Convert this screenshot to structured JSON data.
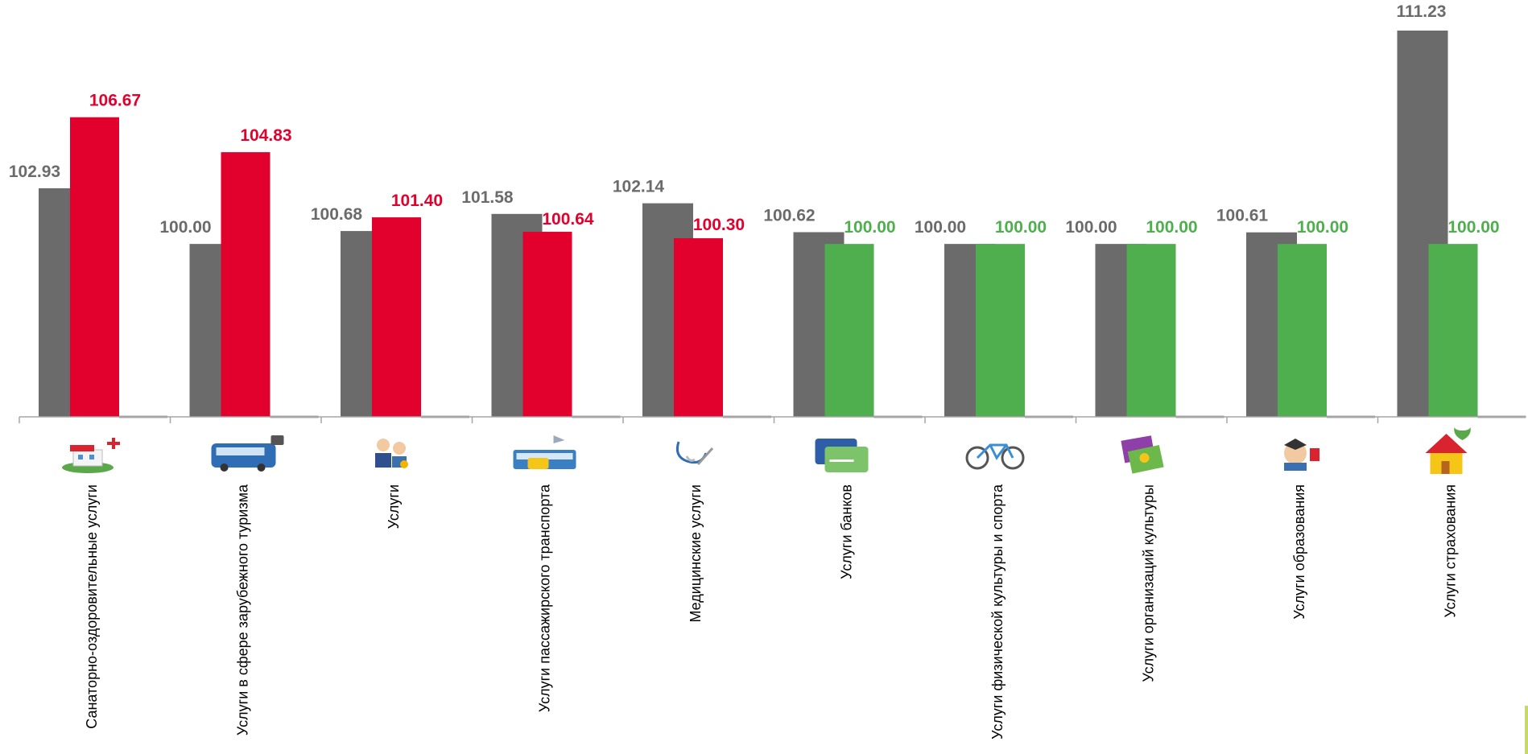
{
  "colors": {
    "prev": "#6b6b6b",
    "up": "#e2002d",
    "flat": "#4fae4e",
    "axis": "#a6a6a6"
  },
  "chart_data": {
    "type": "bar",
    "categories": [
      "Санаторно-оздоровительные услуги",
      "Услуги в сфере зарубежного туризма",
      "Услуги",
      "Услуги пассажирского транспорта",
      "Медицинские услуги",
      "Услуги банков",
      "Услуги физической культуры и спорта",
      "Услуги организаций культуры",
      "Услуги образования",
      "Услуги страхования"
    ],
    "category_icons": [
      "sanatorium-icon",
      "tour-bus-icon",
      "services-people-icon",
      "public-transport-icon",
      "stethoscope-icon",
      "bank-card-icon",
      "bicycle-icon",
      "theatre-tickets-icon",
      "graduate-icon",
      "insured-house-icon"
    ],
    "series": [
      {
        "values": [
          102.93,
          100.0,
          100.68,
          101.58,
          102.14,
          100.62,
          100.0,
          100.0,
          100.61,
          111.23
        ],
        "labels": [
          "102.93",
          "100.00",
          "100.68",
          "101.58",
          "102.14",
          "100.62",
          "100.00",
          "100.00",
          "100.61",
          "111.23"
        ],
        "color": "#6b6b6b"
      },
      {
        "values": [
          106.67,
          104.83,
          101.4,
          100.64,
          100.3,
          100.0,
          100.0,
          100.0,
          100.0,
          100.0
        ],
        "labels": [
          "106.67",
          "104.83",
          "101.40",
          "100.64",
          "100.30",
          "100.00",
          "100.00",
          "100.00",
          "100.00",
          "100.00"
        ],
        "colors": [
          "#e2002d",
          "#e2002d",
          "#e2002d",
          "#e2002d",
          "#e2002d",
          "#4fae4e",
          "#4fae4e",
          "#4fae4e",
          "#4fae4e",
          "#4fae4e"
        ]
      }
    ],
    "ylim": [
      90.9,
      111.23
    ],
    "grid": false,
    "legend": "none"
  }
}
